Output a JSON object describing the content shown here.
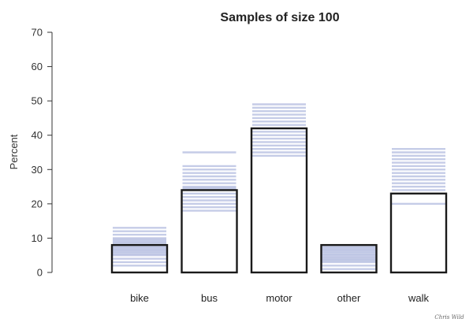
{
  "signature": "Chris Wild",
  "chart_data": {
    "type": "bar",
    "title": "Samples of size 100",
    "ylabel": "Percent",
    "xlabel": "",
    "ylim": [
      0,
      70
    ],
    "yticks": [
      0,
      10,
      20,
      30,
      40,
      50,
      60,
      70
    ],
    "categories": [
      "bike",
      "bus",
      "motor",
      "other",
      "walk"
    ],
    "values": [
      8,
      24,
      42,
      8,
      23
    ],
    "sample_lines": [
      [
        2,
        3,
        4,
        5,
        5.5,
        6,
        6.5,
        7,
        7.5,
        8,
        8.5,
        9,
        9.5,
        10,
        11,
        12,
        13
      ],
      [
        18,
        19,
        20,
        21,
        22,
        23,
        24,
        24.5,
        25,
        26,
        27,
        28,
        29,
        30,
        31,
        35
      ],
      [
        34,
        35,
        36,
        37,
        38,
        39,
        40,
        41,
        42,
        43,
        44,
        45,
        46,
        47,
        48,
        49
      ],
      [
        1,
        2,
        3,
        3.5,
        4,
        4.5,
        5,
        5.5,
        6,
        6.5,
        7,
        7.5
      ],
      [
        20,
        24,
        25,
        26,
        27,
        28,
        29,
        30,
        31,
        32,
        33,
        34,
        35,
        36
      ]
    ],
    "colors": {
      "bar_outline": "#1a1a1a",
      "sample_line": "#4a5fb5"
    },
    "grid": false,
    "legend": "none"
  }
}
